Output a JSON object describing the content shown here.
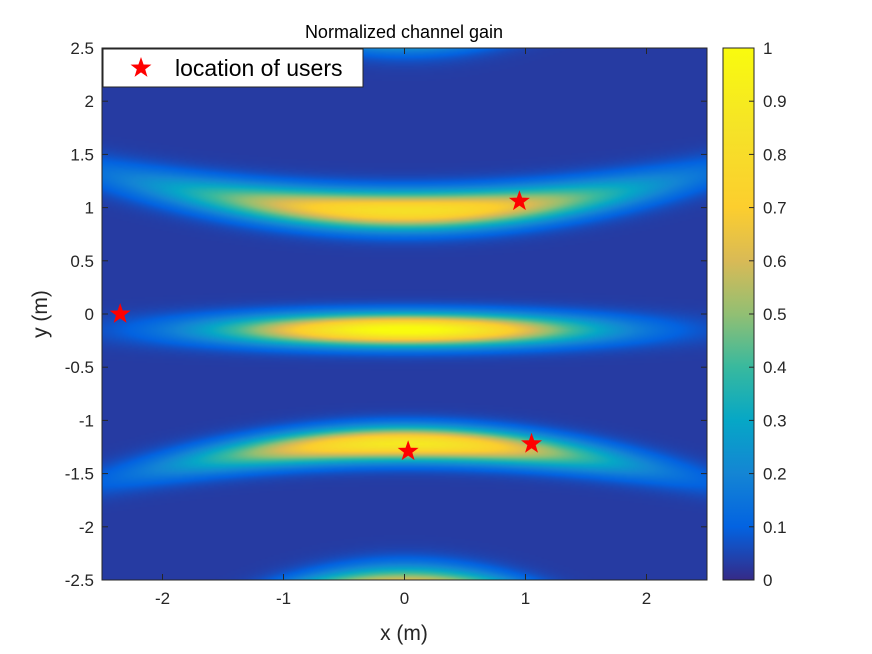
{
  "chart_data": {
    "type": "heatmap",
    "title": "Normalized channel gain",
    "xlabel": "x (m)",
    "ylabel": "y (m)",
    "xlim": [
      -2.5,
      2.5
    ],
    "ylim": [
      -2.5,
      2.5
    ],
    "xticks": [
      -2,
      -1,
      0,
      1,
      2
    ],
    "yticks": [
      -2.5,
      -2,
      -1.5,
      -1,
      -0.5,
      0,
      0.5,
      1,
      1.5,
      2,
      2.5
    ],
    "xtick_labels": [
      "-2",
      "-1",
      "0",
      "1",
      "2"
    ],
    "ytick_labels": [
      "-2.5",
      "-2",
      "-1.5",
      "-1",
      "-0.5",
      "0",
      "0.5",
      "1",
      "1.5",
      "2",
      "2.5"
    ],
    "colorbar": {
      "colormap": "parula",
      "range": [
        0,
        1
      ],
      "ticks": [
        0,
        0.1,
        0.2,
        0.3,
        0.4,
        0.5,
        0.6,
        0.7,
        0.8,
        0.9,
        1
      ],
      "tick_labels": [
        "0",
        "0.1",
        "0.2",
        "0.3",
        "0.4",
        "0.5",
        "0.6",
        "0.7",
        "0.8",
        "0.9",
        "1"
      ]
    },
    "legend": {
      "label": "location of users",
      "placement": "top-left",
      "marker_color": "#ff0000"
    },
    "users": [
      {
        "x": 0.95,
        "y": 1.06
      },
      {
        "x": -2.35,
        "y": 0.0
      },
      {
        "x": 0.03,
        "y": -1.29
      },
      {
        "x": 1.05,
        "y": -1.22
      }
    ],
    "bands": [
      {
        "y0": 2.7,
        "curv": 0.16,
        "peak": 0.55,
        "ysig": 0.2,
        "xsig": 2.8
      },
      {
        "y0": 0.97,
        "curv": 0.055,
        "peak": 0.8,
        "ysig": 0.17,
        "xsig": 1.8
      },
      {
        "y0": -0.15,
        "curv": 0.0,
        "peak": 1.0,
        "ysig": 0.14,
        "xsig": 1.4
      },
      {
        "y0": -1.22,
        "curv": -0.055,
        "peak": 0.86,
        "ysig": 0.15,
        "xsig": 1.6
      },
      {
        "y0": -2.6,
        "curv": -0.16,
        "peak": 0.75,
        "ysig": 0.2,
        "xsig": 2.4
      }
    ]
  }
}
